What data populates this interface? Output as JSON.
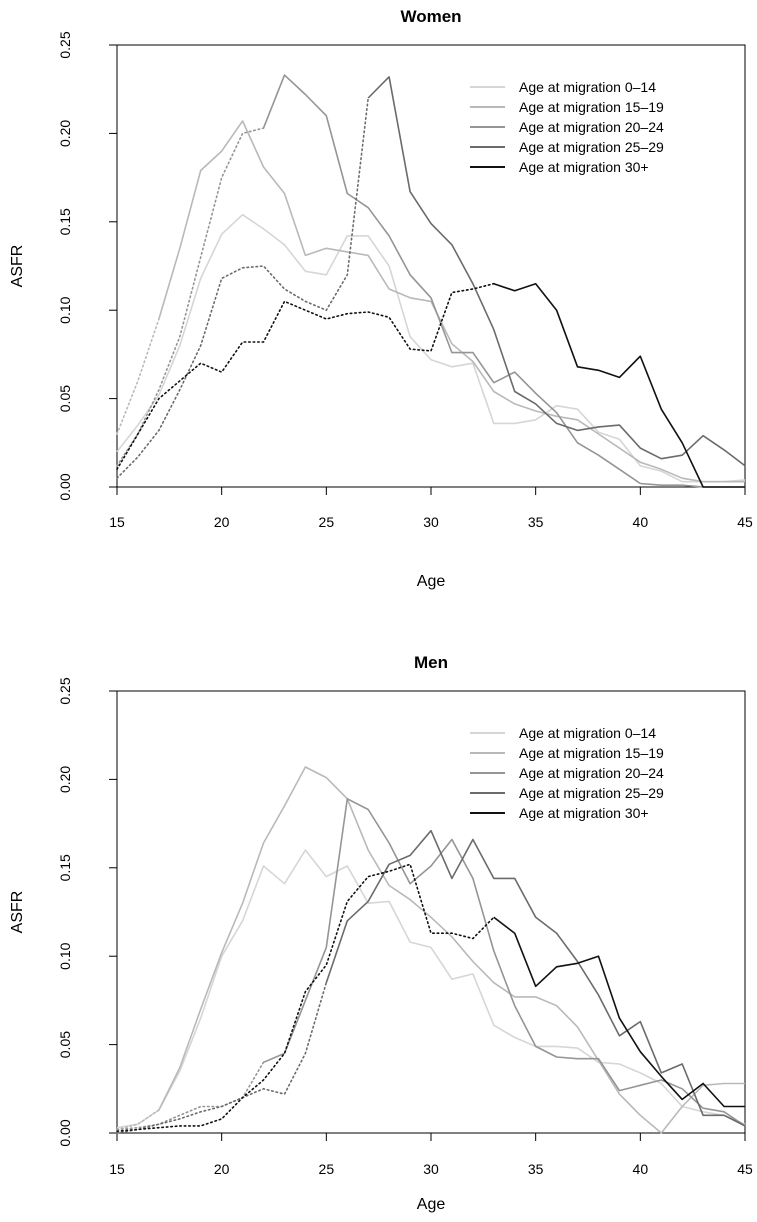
{
  "figure": {
    "colors": {
      "0-14": "#d6d6d6",
      "15-19": "#b9b9b9",
      "20-24": "#959595",
      "25-29": "#6b6b6b",
      "30+": "#111111"
    }
  },
  "chart_data": [
    {
      "type": "line",
      "title": "Women",
      "xlabel": "Age",
      "ylabel": "ASFR",
      "xlim": [
        15,
        45
      ],
      "ylim": [
        0,
        0.25
      ],
      "xticks": [
        "15",
        "20",
        "25",
        "30",
        "35",
        "40",
        "45"
      ],
      "yticks": [
        "0.00",
        "0.05",
        "0.10",
        "0.15",
        "0.20",
        "0.25"
      ],
      "legend_position": "top-right",
      "grid": false,
      "note": "dotted segments precede each cohort's age at migration",
      "series": [
        {
          "name": "Age at migration 0–14",
          "key": "0-14",
          "x": [
            15,
            16,
            17,
            18,
            19,
            20,
            21,
            22,
            23,
            24,
            25,
            26,
            27,
            28,
            29,
            30,
            31,
            32,
            33,
            34,
            35,
            36,
            37,
            38,
            39,
            40,
            41,
            42,
            43,
            44,
            45
          ],
          "values": [
            0.02,
            0.035,
            0.052,
            0.08,
            0.118,
            0.143,
            0.154,
            0.146,
            0.137,
            0.122,
            0.12,
            0.142,
            0.142,
            0.125,
            0.085,
            0.072,
            0.068,
            0.07,
            0.036,
            0.036,
            0.038,
            0.046,
            0.044,
            0.031,
            0.027,
            0.012,
            0.009,
            0.003,
            0.003,
            0.003,
            0.004
          ],
          "dotted_until": 15
        },
        {
          "name": "Age at migration 15–19",
          "key": "15-19",
          "x": [
            15,
            16,
            17,
            18,
            19,
            20,
            21,
            22,
            23,
            24,
            25,
            26,
            27,
            28,
            29,
            30,
            31,
            32,
            33,
            34,
            35,
            36,
            37,
            38,
            39,
            40,
            41,
            42,
            43,
            44,
            45
          ],
          "values": [
            0.03,
            0.06,
            0.095,
            0.135,
            0.179,
            0.19,
            0.207,
            0.181,
            0.166,
            0.131,
            0.135,
            0.133,
            0.131,
            0.112,
            0.107,
            0.105,
            0.081,
            0.071,
            0.054,
            0.047,
            0.043,
            0.04,
            0.038,
            0.03,
            0.022,
            0.014,
            0.01,
            0.005,
            0.003,
            0.003,
            0.003
          ],
          "dotted_until": 17
        },
        {
          "name": "Age at migration 20–24",
          "key": "20-24",
          "x": [
            15,
            16,
            17,
            18,
            19,
            20,
            21,
            22,
            23,
            24,
            25,
            26,
            27,
            28,
            29,
            30,
            31,
            32,
            33,
            34,
            35,
            36,
            37,
            38,
            39,
            40,
            41,
            42,
            43,
            44,
            45
          ],
          "values": [
            0.012,
            0.03,
            0.055,
            0.085,
            0.13,
            0.175,
            0.2,
            0.203,
            0.233,
            0.222,
            0.21,
            0.166,
            0.158,
            0.142,
            0.12,
            0.107,
            0.076,
            0.076,
            0.059,
            0.065,
            0.053,
            0.042,
            0.025,
            0.018,
            0.01,
            0.002,
            0.001,
            0.001,
            0.0,
            0.0,
            0.0
          ],
          "dotted_until": 22
        },
        {
          "name": "Age at migration 25–29",
          "key": "25-29",
          "x": [
            15,
            16,
            17,
            18,
            19,
            20,
            21,
            22,
            23,
            24,
            25,
            26,
            27,
            28,
            29,
            30,
            31,
            32,
            33,
            34,
            35,
            36,
            37,
            38,
            39,
            40,
            41,
            42,
            43,
            44,
            45
          ],
          "values": [
            0.005,
            0.017,
            0.032,
            0.055,
            0.08,
            0.118,
            0.124,
            0.125,
            0.112,
            0.105,
            0.1,
            0.12,
            0.22,
            0.232,
            0.167,
            0.149,
            0.137,
            0.115,
            0.089,
            0.054,
            0.047,
            0.036,
            0.032,
            0.034,
            0.035,
            0.022,
            0.016,
            0.018,
            0.029,
            0.021,
            0.012
          ],
          "dotted_until": 27
        },
        {
          "name": "Age at migration 30+",
          "key": "30+",
          "x": [
            15,
            16,
            17,
            18,
            19,
            20,
            21,
            22,
            23,
            24,
            25,
            26,
            27,
            28,
            29,
            30,
            31,
            32,
            33,
            34,
            35,
            36,
            37,
            38,
            39,
            40,
            41,
            42,
            43,
            44,
            45
          ],
          "values": [
            0.01,
            0.03,
            0.05,
            0.06,
            0.07,
            0.065,
            0.082,
            0.082,
            0.105,
            0.1,
            0.095,
            0.098,
            0.099,
            0.096,
            0.078,
            0.077,
            0.11,
            0.112,
            0.115,
            0.111,
            0.115,
            0.1,
            0.068,
            0.066,
            0.062,
            0.074,
            0.044,
            0.025,
            0.0,
            0.0,
            0.0
          ],
          "dotted_until": 33
        }
      ]
    },
    {
      "type": "line",
      "title": "Men",
      "xlabel": "Age",
      "ylabel": "ASFR",
      "xlim": [
        15,
        45
      ],
      "ylim": [
        0,
        0.25
      ],
      "xticks": [
        "15",
        "20",
        "25",
        "30",
        "35",
        "40",
        "45"
      ],
      "yticks": [
        "0.00",
        "0.05",
        "0.10",
        "0.15",
        "0.20",
        "0.25"
      ],
      "legend_position": "top-right",
      "grid": false,
      "note": "dotted segments precede each cohort's age at migration",
      "series": [
        {
          "name": "Age at migration 0–14",
          "key": "0-14",
          "x": [
            15,
            16,
            17,
            18,
            19,
            20,
            21,
            22,
            23,
            24,
            25,
            26,
            27,
            28,
            29,
            30,
            31,
            32,
            33,
            34,
            35,
            36,
            37,
            38,
            39,
            40,
            41,
            42,
            43,
            44,
            45
          ],
          "values": [
            0.003,
            0.005,
            0.013,
            0.035,
            0.065,
            0.1,
            0.12,
            0.151,
            0.141,
            0.16,
            0.145,
            0.151,
            0.13,
            0.131,
            0.108,
            0.105,
            0.087,
            0.09,
            0.061,
            0.054,
            0.049,
            0.049,
            0.048,
            0.04,
            0.039,
            0.034,
            0.028,
            0.015,
            0.012,
            0.01,
            0.005
          ],
          "dotted_until": 15
        },
        {
          "name": "Age at migration 15–19",
          "key": "15-19",
          "x": [
            15,
            16,
            17,
            18,
            19,
            20,
            21,
            22,
            23,
            24,
            25,
            26,
            27,
            28,
            29,
            30,
            31,
            32,
            33,
            34,
            35,
            36,
            37,
            38,
            39,
            40,
            41,
            42,
            43,
            44,
            45
          ],
          "values": [
            0.002,
            0.005,
            0.013,
            0.037,
            0.07,
            0.102,
            0.13,
            0.164,
            0.185,
            0.207,
            0.201,
            0.189,
            0.16,
            0.14,
            0.132,
            0.122,
            0.111,
            0.097,
            0.085,
            0.077,
            0.077,
            0.072,
            0.06,
            0.041,
            0.022,
            0.01,
            0.0,
            0.015,
            0.027,
            0.028,
            0.028
          ],
          "dotted_until": 17
        },
        {
          "name": "Age at migration 20–24",
          "key": "20-24",
          "x": [
            15,
            16,
            17,
            18,
            19,
            20,
            21,
            22,
            23,
            24,
            25,
            26,
            27,
            28,
            29,
            30,
            31,
            32,
            33,
            34,
            35,
            36,
            37,
            38,
            39,
            40,
            41,
            42,
            43,
            44,
            45
          ],
          "values": [
            0.002,
            0.003,
            0.005,
            0.01,
            0.015,
            0.015,
            0.02,
            0.04,
            0.045,
            0.075,
            0.105,
            0.189,
            0.183,
            0.164,
            0.141,
            0.151,
            0.166,
            0.144,
            0.103,
            0.072,
            0.049,
            0.043,
            0.042,
            0.042,
            0.024,
            0.027,
            0.03,
            0.025,
            0.014,
            0.012,
            0.004
          ],
          "dotted_until": 22
        },
        {
          "name": "Age at migration 25–29",
          "key": "25-29",
          "x": [
            15,
            16,
            17,
            18,
            19,
            20,
            21,
            22,
            23,
            24,
            25,
            26,
            27,
            28,
            29,
            30,
            31,
            32,
            33,
            34,
            35,
            36,
            37,
            38,
            39,
            40,
            41,
            42,
            43,
            44,
            45
          ],
          "values": [
            0.0,
            0.002,
            0.005,
            0.008,
            0.012,
            0.015,
            0.02,
            0.025,
            0.022,
            0.045,
            0.085,
            0.12,
            0.131,
            0.152,
            0.157,
            0.171,
            0.144,
            0.166,
            0.144,
            0.144,
            0.122,
            0.113,
            0.097,
            0.078,
            0.055,
            0.063,
            0.034,
            0.039,
            0.01,
            0.01,
            0.004
          ],
          "dotted_until": 25
        },
        {
          "name": "Age at migration 30+",
          "key": "30+",
          "x": [
            15,
            16,
            17,
            18,
            19,
            20,
            21,
            22,
            23,
            24,
            25,
            26,
            27,
            28,
            29,
            30,
            31,
            32,
            33,
            34,
            35,
            36,
            37,
            38,
            39,
            40,
            41,
            42,
            43,
            44,
            45
          ],
          "values": [
            0.001,
            0.002,
            0.003,
            0.004,
            0.004,
            0.008,
            0.02,
            0.03,
            0.045,
            0.08,
            0.095,
            0.131,
            0.145,
            0.148,
            0.152,
            0.113,
            0.113,
            0.11,
            0.122,
            0.113,
            0.083,
            0.094,
            0.096,
            0.1,
            0.065,
            0.046,
            0.032,
            0.019,
            0.028,
            0.015,
            0.015
          ],
          "dotted_until": 33
        }
      ]
    }
  ]
}
